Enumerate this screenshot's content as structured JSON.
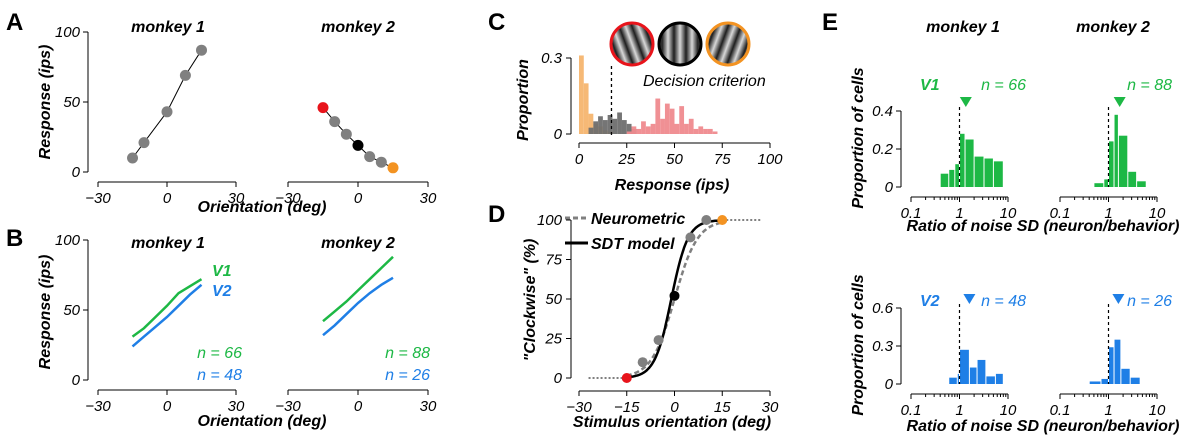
{
  "colors": {
    "green": "#1db845",
    "blue": "#1f7fe6",
    "gray": "#808080",
    "red": "#e8141b",
    "orange": "#f39322",
    "black": "#000000",
    "hist_orange": "#f5b56f",
    "hist_pink": "#ef8a8e",
    "hist_gray": "#6e6e6e"
  },
  "panel_labels": {
    "A": "A",
    "B": "B",
    "C": "C",
    "D": "D",
    "E": "E"
  },
  "chart_data": [
    {
      "id": "A1",
      "type": "line",
      "title": "monkey 1",
      "xlabel": "",
      "ylabel": "Response (ips)",
      "xlim": [
        -30,
        30
      ],
      "ylim": [
        0,
        100
      ],
      "xticks": [
        "−30",
        "0",
        "30"
      ],
      "yticks": [
        "0",
        "50",
        "100"
      ],
      "points": [
        {
          "x": -15,
          "y": 10,
          "color": "gray"
        },
        {
          "x": -10,
          "y": 21,
          "color": "gray"
        },
        {
          "x": 0,
          "y": 43,
          "color": "gray"
        },
        {
          "x": 8,
          "y": 69,
          "color": "gray"
        },
        {
          "x": 15,
          "y": 87,
          "color": "gray"
        }
      ]
    },
    {
      "id": "A2",
      "type": "line",
      "title": "monkey 2",
      "xlabel": "Orientation (deg)",
      "ylabel": "",
      "xlim": [
        -30,
        30
      ],
      "ylim": [
        0,
        100
      ],
      "xticks": [
        "−30",
        "0",
        "30"
      ],
      "yticks": [],
      "points": [
        {
          "x": -15,
          "y": 46,
          "color": "red"
        },
        {
          "x": -10,
          "y": 36,
          "color": "gray"
        },
        {
          "x": -5,
          "y": 27,
          "color": "gray"
        },
        {
          "x": 0,
          "y": 19,
          "color": "black"
        },
        {
          "x": 5,
          "y": 11,
          "color": "gray"
        },
        {
          "x": 10,
          "y": 7,
          "color": "gray"
        },
        {
          "x": 15,
          "y": 3,
          "color": "orange"
        }
      ]
    },
    {
      "id": "B1",
      "type": "line",
      "title": "monkey 1",
      "xlabel": "",
      "ylabel": "Response (ips)",
      "xlim": [
        -30,
        30
      ],
      "ylim": [
        0,
        100
      ],
      "xticks": [
        "−30",
        "0",
        "30"
      ],
      "yticks": [
        "0",
        "50",
        "100"
      ],
      "series_labels": [
        {
          "text": "V1",
          "color": "green"
        },
        {
          "text": "V2",
          "color": "blue"
        }
      ],
      "notes": [
        {
          "text": "n = 66",
          "color": "green"
        },
        {
          "text": "n = 48",
          "color": "blue"
        }
      ],
      "series": [
        {
          "name": "V1",
          "color": "green",
          "x": [
            -15,
            -10,
            -5,
            0,
            5,
            10,
            15
          ],
          "y": [
            31,
            37,
            45,
            53,
            62,
            67,
            72
          ]
        },
        {
          "name": "V2",
          "color": "blue",
          "x": [
            -15,
            -10,
            -5,
            0,
            5,
            10,
            15
          ],
          "y": [
            24,
            31,
            38,
            45,
            53,
            61,
            68
          ]
        }
      ]
    },
    {
      "id": "B2",
      "type": "line",
      "title": "monkey 2",
      "xlabel": "Orientation (deg)",
      "ylabel": "",
      "xlim": [
        -30,
        30
      ],
      "ylim": [
        0,
        100
      ],
      "xticks": [
        "−30",
        "0",
        "30"
      ],
      "yticks": [],
      "notes": [
        {
          "text": "n = 88",
          "color": "green"
        },
        {
          "text": "n = 26",
          "color": "blue"
        }
      ],
      "series": [
        {
          "name": "V1",
          "color": "green",
          "x": [
            -15,
            -10,
            -5,
            0,
            5,
            10,
            15
          ],
          "y": [
            42,
            49,
            56,
            64,
            72,
            80,
            88
          ]
        },
        {
          "name": "V2",
          "color": "blue",
          "x": [
            -15,
            -10,
            -5,
            0,
            5,
            10,
            15
          ],
          "y": [
            32,
            39,
            47,
            55,
            62,
            68,
            73
          ]
        }
      ]
    },
    {
      "id": "C",
      "type": "bar",
      "title": "",
      "xlabel": "Response (ips)",
      "ylabel": "Proportion",
      "xlim": [
        0,
        100
      ],
      "ylim": [
        0,
        0.3
      ],
      "xticks": [
        "0",
        "25",
        "50",
        "75",
        "100"
      ],
      "yticks": [
        "0",
        "0.3"
      ],
      "criterion": {
        "x": 17,
        "label": "Decision criterion"
      },
      "series": [
        {
          "color": "hist_orange",
          "bin_width": 2.5,
          "x": [
            0,
            2.5,
            5,
            7.5,
            10,
            12.5,
            15
          ],
          "y": [
            0.31,
            0.2,
            0.08,
            0.04,
            0.03,
            0.015,
            0.01
          ]
        },
        {
          "color": "hist_gray",
          "bin_width": 2.5,
          "x": [
            5,
            7.5,
            10,
            12.5,
            15,
            17.5,
            20,
            22.5,
            25,
            27.5
          ],
          "y": [
            0.025,
            0.05,
            0.07,
            0.055,
            0.075,
            0.06,
            0.085,
            0.055,
            0.04,
            0.02
          ]
        },
        {
          "color": "hist_pink",
          "bin_width": 2.5,
          "x": [
            25,
            27.5,
            30,
            32.5,
            35,
            37.5,
            40,
            42.5,
            45,
            47.5,
            50,
            52.5,
            55,
            57.5,
            60,
            62.5,
            65,
            67.5,
            70
          ],
          "y": [
            0.01,
            0.03,
            0.02,
            0.05,
            0.03,
            0.04,
            0.14,
            0.06,
            0.12,
            0.1,
            0.04,
            0.11,
            0.04,
            0.06,
            0.02,
            0.03,
            0.02,
            0.02,
            0.01
          ]
        }
      ],
      "gratings": [
        {
          "ring": "red",
          "tilt": -20
        },
        {
          "ring": "black",
          "tilt": 0
        },
        {
          "ring": "orange",
          "tilt": 20
        }
      ]
    },
    {
      "id": "D",
      "type": "line",
      "title": "",
      "xlabel": "Stimulus orientation (deg)",
      "ylabel": "\"Clockwise\" (%)",
      "xlim": [
        -30,
        30
      ],
      "ylim": [
        0,
        100
      ],
      "xticks": [
        "−30",
        "−15",
        "0",
        "15",
        "30"
      ],
      "yticks": [
        "0",
        "25",
        "50",
        "75",
        "100"
      ],
      "series": [
        {
          "name": "Neurometric",
          "color": "gray",
          "style": "dashed",
          "fn": "logistic",
          "mu": 0,
          "sigma": 3.6
        },
        {
          "name": "SDT model",
          "color": "black",
          "style": "solid",
          "fn": "logistic",
          "mu": -1,
          "sigma": 2.6
        }
      ],
      "points": [
        {
          "x": -15,
          "y": 0,
          "color": "red"
        },
        {
          "x": -10,
          "y": 10,
          "color": "gray"
        },
        {
          "x": -5,
          "y": 24,
          "color": "gray"
        },
        {
          "x": 0,
          "y": 52,
          "color": "black"
        },
        {
          "x": 5,
          "y": 89,
          "color": "gray"
        },
        {
          "x": 10,
          "y": 100,
          "color": "gray"
        },
        {
          "x": 15,
          "y": 100,
          "color": "orange"
        }
      ]
    },
    {
      "id": "E-V1-m1",
      "type": "bar",
      "title": "monkey 1",
      "xscale": "log",
      "xlabel": "",
      "ylabel": "Proportion of cells",
      "xlim": [
        0.1,
        10
      ],
      "ylim": [
        0,
        0.4
      ],
      "xticks": [
        "0.1",
        "1",
        "10"
      ],
      "yticks": [
        "0",
        "0.2",
        "0.4"
      ],
      "area_label": {
        "text": "V1",
        "color": "green"
      },
      "n": "n = 66",
      "color": "green",
      "median": 1.35,
      "ref_line": 1,
      "bins": [
        [
          0.4,
          0.6,
          0.07
        ],
        [
          0.6,
          0.8,
          0.09
        ],
        [
          0.8,
          1.0,
          0.12
        ],
        [
          1.0,
          1.3,
          0.28
        ],
        [
          1.3,
          2.0,
          0.25
        ],
        [
          2.0,
          3.2,
          0.16
        ],
        [
          3.2,
          5.0,
          0.15
        ],
        [
          5.0,
          8.0,
          0.135
        ]
      ]
    },
    {
      "id": "E-V1-m2",
      "type": "bar",
      "title": "monkey 2",
      "xscale": "log",
      "xlabel": "Ratio of noise SD (neuron/behavior)",
      "ylabel": "",
      "xlim": [
        0.1,
        10
      ],
      "ylim": [
        0,
        0.4
      ],
      "xticks": [
        "0.1",
        "1",
        "10"
      ],
      "yticks": [],
      "n": "n = 88",
      "color": "green",
      "median": 1.7,
      "ref_line": 1,
      "bins": [
        [
          0.5,
          0.8,
          0.02
        ],
        [
          0.8,
          1.0,
          0.04
        ],
        [
          1.0,
          1.3,
          0.24
        ],
        [
          1.3,
          1.6,
          0.38
        ],
        [
          1.6,
          2.5,
          0.27
        ],
        [
          2.5,
          3.8,
          0.08
        ],
        [
          3.8,
          6.0,
          0.03
        ]
      ]
    },
    {
      "id": "E-V2-m1",
      "type": "bar",
      "title": "",
      "xscale": "log",
      "xlabel": "",
      "ylabel": "Proportion of cells",
      "xlim": [
        0.1,
        10
      ],
      "ylim": [
        0,
        0.6
      ],
      "xticks": [
        "0.1",
        "1",
        "10"
      ],
      "yticks": [
        "0",
        "0.3",
        "0.6"
      ],
      "area_label": {
        "text": "V2",
        "color": "blue"
      },
      "n": "n = 48",
      "color": "blue",
      "median": 1.6,
      "ref_line": 1,
      "bins": [
        [
          0.6,
          0.9,
          0.05
        ],
        [
          0.9,
          1.0,
          0.08
        ],
        [
          1.0,
          1.6,
          0.27
        ],
        [
          1.6,
          2.3,
          0.13
        ],
        [
          2.3,
          3.5,
          0.19
        ],
        [
          3.5,
          5.5,
          0.06
        ],
        [
          5.5,
          8.0,
          0.08
        ]
      ]
    },
    {
      "id": "E-V2-m2",
      "type": "bar",
      "title": "",
      "xscale": "log",
      "xlabel": "Ratio of noise SD (neuron/behavior)",
      "ylabel": "",
      "xlim": [
        0.1,
        10
      ],
      "ylim": [
        0,
        0.6
      ],
      "xticks": [
        "0.1",
        "1",
        "10"
      ],
      "yticks": [],
      "n": "n = 26",
      "color": "blue",
      "median": 1.6,
      "ref_line": 1,
      "bins": [
        [
          0.4,
          0.7,
          0.02
        ],
        [
          0.7,
          1.0,
          0.04
        ],
        [
          1.0,
          1.3,
          0.29
        ],
        [
          1.3,
          1.8,
          0.35
        ],
        [
          1.8,
          2.8,
          0.12
        ],
        [
          2.8,
          4.5,
          0.05
        ]
      ]
    }
  ]
}
